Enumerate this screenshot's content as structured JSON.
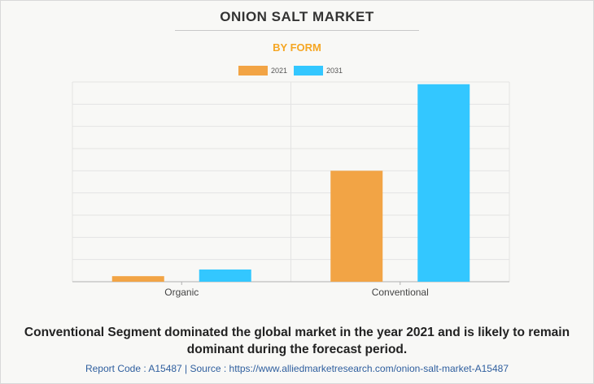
{
  "header": {
    "title": "ONION SALT MARKET",
    "subtitle": "BY FORM"
  },
  "legend": [
    {
      "label": "2021",
      "color": "#f2a445"
    },
    {
      "label": "2031",
      "color": "#33c7ff"
    }
  ],
  "chart_data": {
    "type": "bar",
    "categories": [
      "Organic",
      "Conventional"
    ],
    "series": [
      {
        "name": "2021",
        "values": [
          2.5,
          50
        ],
        "color": "#f2a445"
      },
      {
        "name": "2031",
        "values": [
          5.5,
          89
        ],
        "color": "#33c7ff"
      }
    ],
    "ylim": [
      0,
      90
    ],
    "grid": true,
    "legend_position": "top-center",
    "title": "ONION SALT MARKET",
    "subtitle": "BY FORM"
  },
  "caption": "Conventional Segment dominated the global market in the year 2021 and is likely to remain dominant during the forecast period.",
  "footer": "Report Code : A15487  |  Source : https://www.alliedmarketresearch.com/onion-salt-market-A15487"
}
